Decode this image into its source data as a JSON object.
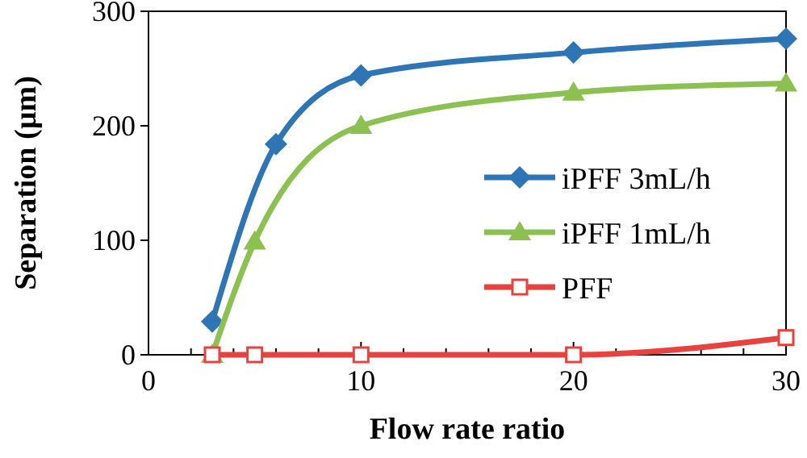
{
  "chart_data": {
    "type": "line",
    "xlabel": "Flow rate ratio",
    "ylabel": "Separation (µm)",
    "xlim": [
      0,
      30
    ],
    "xticks": [
      0,
      10,
      20,
      30
    ],
    "ylim": [
      0,
      300
    ],
    "yticks": [
      0,
      100,
      200,
      300
    ],
    "grid": false,
    "legend": "right",
    "series": [
      {
        "name": "iPFF 3mL/h",
        "color": "#2e75b6",
        "marker": "diamond",
        "x": [
          3,
          6,
          10,
          20,
          30
        ],
        "values": [
          29,
          184,
          244,
          264,
          276
        ]
      },
      {
        "name": "iPFF 1mL/h",
        "color": "#8cc152",
        "marker": "triangle",
        "x": [
          3,
          5,
          10,
          20,
          30
        ],
        "values": [
          0,
          99,
          200,
          229,
          237
        ]
      },
      {
        "name": "PFF",
        "color": "#e8423f",
        "marker": "square",
        "x": [
          3,
          5,
          10,
          20,
          30
        ],
        "values": [
          0,
          0,
          0,
          0,
          15
        ]
      }
    ]
  }
}
